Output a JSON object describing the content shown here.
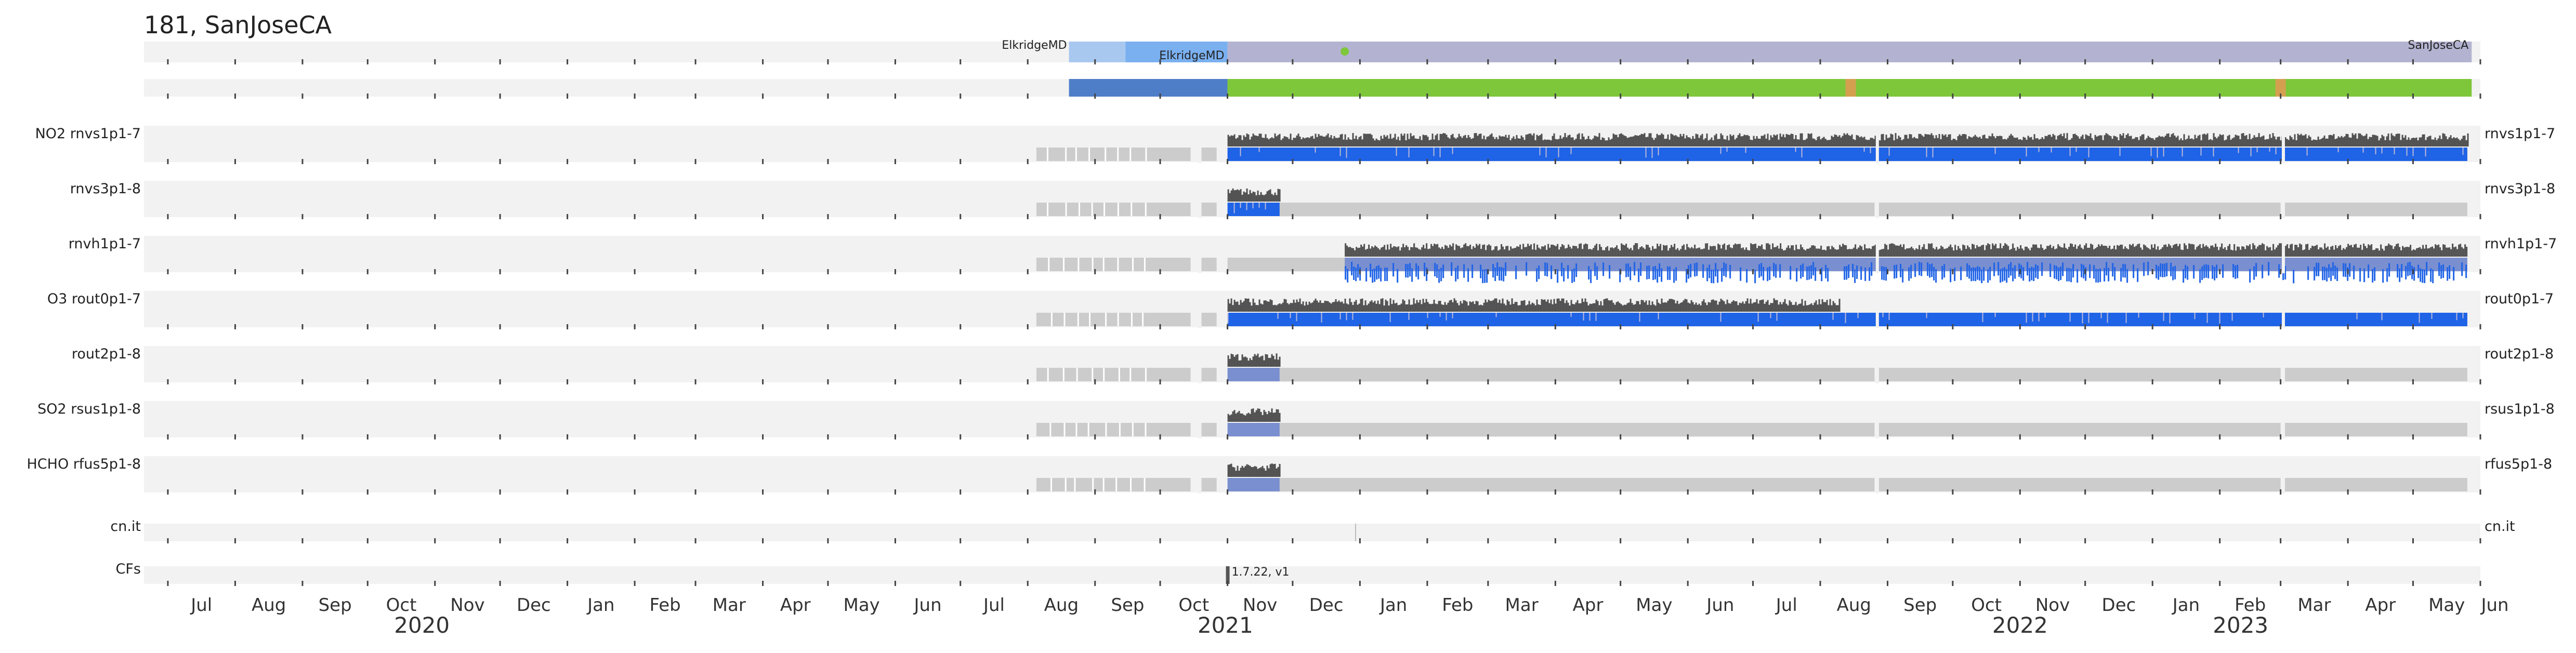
{
  "chart_data": {
    "type": "timeline",
    "title": "181, SanJoseCA",
    "x_range": [
      "2020-06-20",
      "2023-06-01"
    ],
    "location_bar": [
      {
        "label": "ElkridgeMD",
        "start": "2021-08-20",
        "end": "2021-09-15",
        "color": "#a8c8f0"
      },
      {
        "label": "ElkridgeMD",
        "start": "2021-09-15",
        "end": "2021-11-01",
        "color": "#7ab0f0"
      },
      {
        "label": "SanJoseCA",
        "start": "2021-11-01",
        "end": "2023-05-28",
        "color": "#b3b3d1"
      }
    ],
    "status_bar": [
      {
        "start": "2021-08-20",
        "end": "2021-11-01",
        "color": "#4f7ec8"
      },
      {
        "start": "2021-11-01",
        "end": "2023-05-28",
        "color": "#7ec63a"
      }
    ],
    "status_marks": [
      {
        "date": "2022-08-15",
        "color": "#d4a050"
      },
      {
        "date": "2023-03-01",
        "color": "#d4a050"
      }
    ],
    "point_marker": {
      "date": "2021-12-25",
      "color": "#7ec63a"
    },
    "rows": [
      {
        "species": "NO2",
        "name": "rnvs1p1-7",
        "blue_start": "2021-11-01",
        "blue_end": "2023-05-26",
        "dark_start": "2021-11-01",
        "dark_end": "2023-05-26",
        "blue_style": "solid"
      },
      {
        "species": "",
        "name": "rnvs3p1-8",
        "blue_start": "2021-11-01",
        "blue_end": "2021-11-25",
        "dark_start": "2021-11-01",
        "dark_end": "2021-11-25",
        "blue_style": "solid"
      },
      {
        "species": "",
        "name": "rnvh1p1-7",
        "blue_start": "2021-12-25",
        "blue_end": "2023-05-26",
        "dark_start": "2021-12-25",
        "dark_end": "2023-05-26",
        "blue_style": "mixed"
      },
      {
        "species": "O3",
        "name": "rout0p1-7",
        "blue_start": "2021-11-01",
        "blue_end": "2023-05-26",
        "dark_start": "2021-11-01",
        "dark_end": "2022-08-10",
        "blue_style": "solid"
      },
      {
        "species": "",
        "name": "rout2p1-8",
        "blue_start": "2021-11-01",
        "blue_end": "2021-11-25",
        "dark_start": "2021-11-01",
        "dark_end": "2021-11-25",
        "blue_style": "muted"
      },
      {
        "species": "SO2",
        "name": "rsus1p1-8",
        "blue_start": "2021-11-01",
        "blue_end": "2021-11-25",
        "dark_start": "2021-11-01",
        "dark_end": "2021-11-25",
        "blue_style": "muted"
      },
      {
        "species": "HCHO",
        "name": "rfus5p1-8",
        "blue_start": "2021-11-01",
        "blue_end": "2021-11-25",
        "dark_start": "2021-11-01",
        "dark_end": "2021-11-25",
        "blue_style": "muted"
      }
    ],
    "gray_segments": [
      [
        "2021-08-05",
        "2021-10-15"
      ],
      [
        "2021-10-20",
        "2021-10-27"
      ],
      [
        "2021-11-01",
        "2022-08-26"
      ],
      [
        "2022-08-28",
        "2023-03-01"
      ],
      [
        "2023-03-03",
        "2023-05-26"
      ]
    ],
    "extra_rows": [
      {
        "name": "cn.it",
        "tick_date": "2021-12-30"
      },
      {
        "name": "CFs",
        "marker_date": "2021-11-01",
        "annotation": "1.7.22, v1"
      }
    ],
    "month_labels": [
      "Jul",
      "Aug",
      "Sep",
      "Oct",
      "Nov",
      "Dec",
      "Jan",
      "Feb",
      "Mar",
      "Apr",
      "May",
      "Jun",
      "Jul",
      "Aug",
      "Sep",
      "Oct",
      "Nov",
      "Dec",
      "Jan",
      "Feb",
      "Mar",
      "Apr",
      "May",
      "Jun",
      "Jul",
      "Aug",
      "Sep",
      "Oct",
      "Nov",
      "Dec",
      "Jan",
      "Feb",
      "Mar",
      "Apr",
      "May",
      "Jun"
    ],
    "year_labels": [
      "2020",
      "2021",
      "2022",
      "2023"
    ],
    "colors": {
      "panel": "#f2f2f2",
      "gray": "#cccccc",
      "dark": "#505050",
      "blue": "#1f63e6",
      "blue_muted": "#7a8fd0"
    }
  }
}
